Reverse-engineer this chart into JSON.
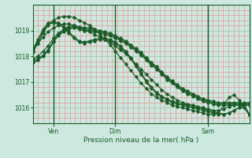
{
  "background_color": "#cce8df",
  "plot_bg_color": "#cce8df",
  "line_color": "#1a5c28",
  "grid_color_minor": "#e89898",
  "grid_color_major": "#aaccb8",
  "xlabel": "Pression niveau de la mer( hPa )",
  "ylim": [
    1015.4,
    1020.0
  ],
  "yticks": [
    1016,
    1017,
    1018,
    1019
  ],
  "xtick_labels": [
    "Ven",
    "Dim",
    "Sam"
  ],
  "xtick_x": [
    4,
    16,
    34
  ],
  "vline_x": [
    4,
    16,
    34
  ],
  "n_points": 43,
  "series": [
    [
      1017.75,
      1017.85,
      1018.0,
      1018.2,
      1018.55,
      1018.8,
      1018.95,
      1019.05,
      1019.1,
      1019.05,
      1019.0,
      1019.0,
      1018.95,
      1018.9,
      1018.85,
      1018.8,
      1018.7,
      1018.6,
      1018.5,
      1018.35,
      1018.2,
      1018.05,
      1017.85,
      1017.65,
      1017.5,
      1017.3,
      1017.1,
      1016.95,
      1016.8,
      1016.65,
      1016.55,
      1016.45,
      1016.35,
      1016.25,
      1016.2,
      1016.15,
      1016.1,
      1016.1,
      1016.1,
      1016.1,
      1016.1,
      1016.1,
      1016.1
    ],
    [
      1017.8,
      1017.9,
      1018.05,
      1018.25,
      1018.6,
      1018.85,
      1019.0,
      1019.1,
      1019.15,
      1019.1,
      1019.05,
      1019.05,
      1019.0,
      1018.95,
      1018.9,
      1018.85,
      1018.75,
      1018.65,
      1018.55,
      1018.4,
      1018.25,
      1018.1,
      1017.9,
      1017.7,
      1017.55,
      1017.35,
      1017.15,
      1017.0,
      1016.85,
      1016.7,
      1016.6,
      1016.5,
      1016.4,
      1016.3,
      1016.25,
      1016.2,
      1016.15,
      1016.15,
      1016.15,
      1016.15,
      1016.15,
      1016.15,
      1016.15
    ],
    [
      1017.9,
      1018.0,
      1018.2,
      1018.4,
      1018.7,
      1018.9,
      1019.05,
      1019.15,
      1019.2,
      1019.15,
      1019.1,
      1019.1,
      1019.05,
      1019.0,
      1018.95,
      1018.9,
      1018.8,
      1018.7,
      1018.6,
      1018.45,
      1018.3,
      1018.15,
      1017.95,
      1017.75,
      1017.6,
      1017.4,
      1017.2,
      1017.05,
      1016.9,
      1016.75,
      1016.65,
      1016.55,
      1016.45,
      1016.35,
      1016.3,
      1016.25,
      1016.2,
      1016.2,
      1016.2,
      1016.2,
      1016.2,
      1016.2,
      1016.2
    ],
    [
      1018.3,
      1018.5,
      1018.75,
      1018.95,
      1019.1,
      1019.2,
      1019.25,
      1019.25,
      1019.2,
      1019.1,
      1019.0,
      1018.95,
      1018.85,
      1018.75,
      1018.65,
      1018.55,
      1018.4,
      1018.25,
      1018.1,
      1017.9,
      1017.7,
      1017.5,
      1017.3,
      1017.1,
      1016.9,
      1016.7,
      1016.55,
      1016.4,
      1016.3,
      1016.2,
      1016.15,
      1016.1,
      1016.05,
      1016.0,
      1015.95,
      1015.9,
      1015.9,
      1015.95,
      1016.05,
      1016.1,
      1016.1,
      1016.1,
      1016.1
    ],
    [
      1018.15,
      1018.5,
      1018.9,
      1019.2,
      1019.4,
      1019.5,
      1019.55,
      1019.55,
      1019.5,
      1019.4,
      1019.3,
      1019.2,
      1019.05,
      1018.85,
      1018.65,
      1018.45,
      1018.2,
      1017.95,
      1017.7,
      1017.45,
      1017.2,
      1016.95,
      1016.75,
      1016.55,
      1016.4,
      1016.3,
      1016.2,
      1016.1,
      1016.05,
      1016.0,
      1015.95,
      1015.9,
      1015.85,
      1015.8,
      1015.75,
      1015.75,
      1015.8,
      1016.1,
      1016.4,
      1016.5,
      1016.3,
      1016.0,
      1015.7
    ],
    [
      1018.2,
      1018.6,
      1019.0,
      1019.25,
      1019.3,
      1019.25,
      1019.1,
      1018.9,
      1018.7,
      1018.55,
      1018.5,
      1018.55,
      1018.6,
      1018.65,
      1018.65,
      1018.6,
      1018.5,
      1018.35,
      1018.15,
      1017.9,
      1017.6,
      1017.3,
      1017.0,
      1016.75,
      1016.55,
      1016.4,
      1016.3,
      1016.2,
      1016.15,
      1016.1,
      1016.05,
      1016.0,
      1015.95,
      1015.9,
      1015.85,
      1015.8,
      1015.75,
      1015.75,
      1015.8,
      1015.9,
      1016.0,
      1016.0,
      1015.75
    ],
    [
      1018.25,
      1018.65,
      1019.05,
      1019.3,
      1019.35,
      1019.3,
      1019.15,
      1018.95,
      1018.75,
      1018.6,
      1018.55,
      1018.6,
      1018.65,
      1018.7,
      1018.7,
      1018.65,
      1018.55,
      1018.4,
      1018.2,
      1017.95,
      1017.65,
      1017.35,
      1017.05,
      1016.8,
      1016.6,
      1016.45,
      1016.35,
      1016.25,
      1016.2,
      1016.15,
      1016.1,
      1016.05,
      1016.0,
      1015.95,
      1015.9,
      1015.85,
      1015.8,
      1015.75,
      1015.8,
      1015.9,
      1016.0,
      1016.1,
      1015.75
    ]
  ]
}
